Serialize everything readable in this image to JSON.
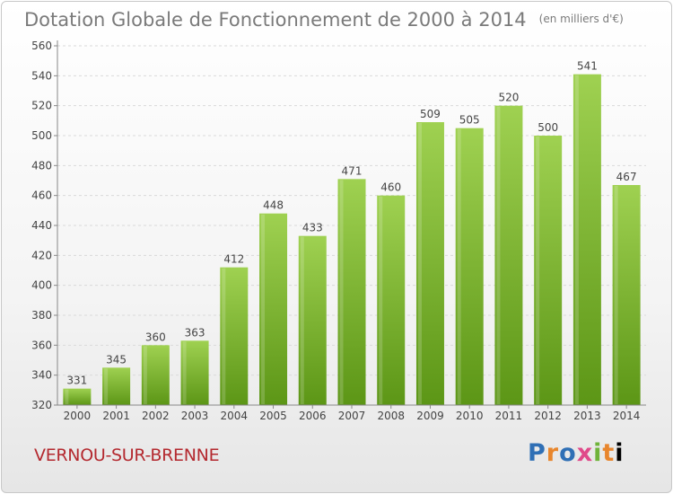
{
  "header": {
    "title": "Dotation Globale de Fonctionnement de 2000 à 2014",
    "unit": "(en milliers d'€)"
  },
  "footer": {
    "city": "VERNOU-SUR-BRENNE",
    "logo_text": "Proxiti"
  },
  "colors": {
    "bar_top": "#9fd151",
    "bar_bottom": "#5c9616",
    "grid": "#d9d9d9",
    "axis_text": "#444444",
    "city": "#b4292f"
  },
  "chart_data": {
    "type": "bar",
    "title": "Dotation Globale de Fonctionnement de 2000 à 2014",
    "subtitle": "(en milliers d'€)",
    "categories": [
      "2000",
      "2001",
      "2002",
      "2003",
      "2004",
      "2005",
      "2006",
      "2007",
      "2008",
      "2009",
      "2010",
      "2011",
      "2012",
      "2013",
      "2014"
    ],
    "values": [
      331,
      345,
      360,
      363,
      412,
      448,
      433,
      471,
      460,
      509,
      505,
      520,
      500,
      541,
      467
    ],
    "ylim": [
      320,
      560
    ],
    "yticks": [
      320,
      340,
      360,
      380,
      400,
      420,
      440,
      460,
      480,
      500,
      520,
      540,
      560
    ],
    "grid": true,
    "data_labels": true
  }
}
